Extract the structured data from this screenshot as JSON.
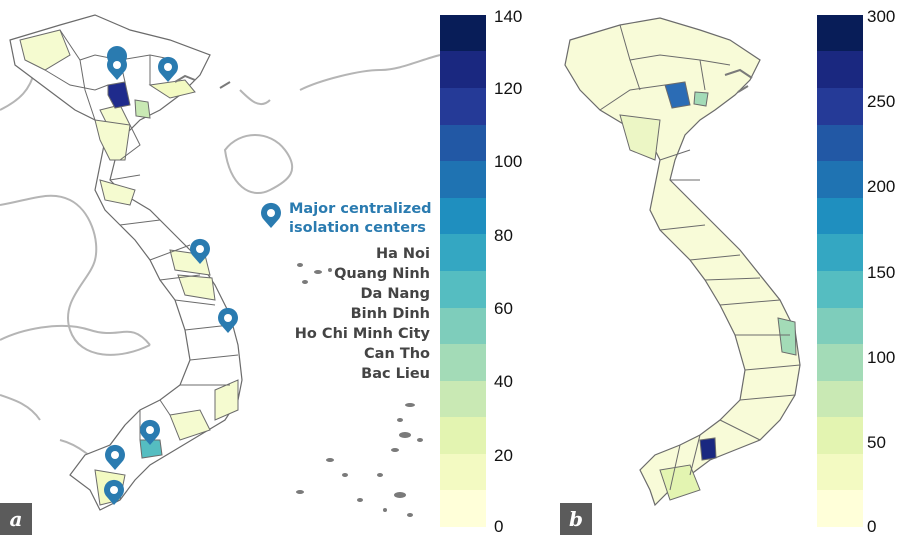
{
  "panels": [
    {
      "label": "a",
      "colorbar": {
        "ticks": [
          "140",
          "120",
          "100",
          "80",
          "60",
          "40",
          "20",
          "0"
        ],
        "range": [
          0,
          140
        ],
        "colors": [
          "#ffffd9",
          "#f3fac2",
          "#e3f4b1",
          "#c9e9b4",
          "#a3dbb7",
          "#7ecdbb",
          "#55bdc1",
          "#34a7c2",
          "#1f8fbf",
          "#1f73b2",
          "#2258a5",
          "#253a97",
          "#1a2880",
          "#081d58"
        ]
      }
    },
    {
      "label": "b",
      "colorbar": {
        "ticks": [
          "300",
          "250",
          "200",
          "150",
          "100",
          "50",
          "0"
        ],
        "range": [
          0,
          300
        ],
        "colors": [
          "#ffffd9",
          "#f3fac2",
          "#e3f4b1",
          "#c9e9b4",
          "#a3dbb7",
          "#7ecdbb",
          "#55bdc1",
          "#34a7c2",
          "#1f8fbf",
          "#1f73b2",
          "#2258a5",
          "#253a97",
          "#1a2880",
          "#081d58"
        ]
      }
    }
  ],
  "legend": {
    "title_line1": "Major centralized",
    "title_line2": "isolation centers",
    "icon": "map-pin-icon",
    "pin_color": "#2a7bb0",
    "items": [
      "Ha Noi",
      "Quang Ninh",
      "Da Nang",
      "Binh Dinh",
      "Ho Chi Minh City",
      "Can Tho",
      "Bac Lieu"
    ]
  }
}
